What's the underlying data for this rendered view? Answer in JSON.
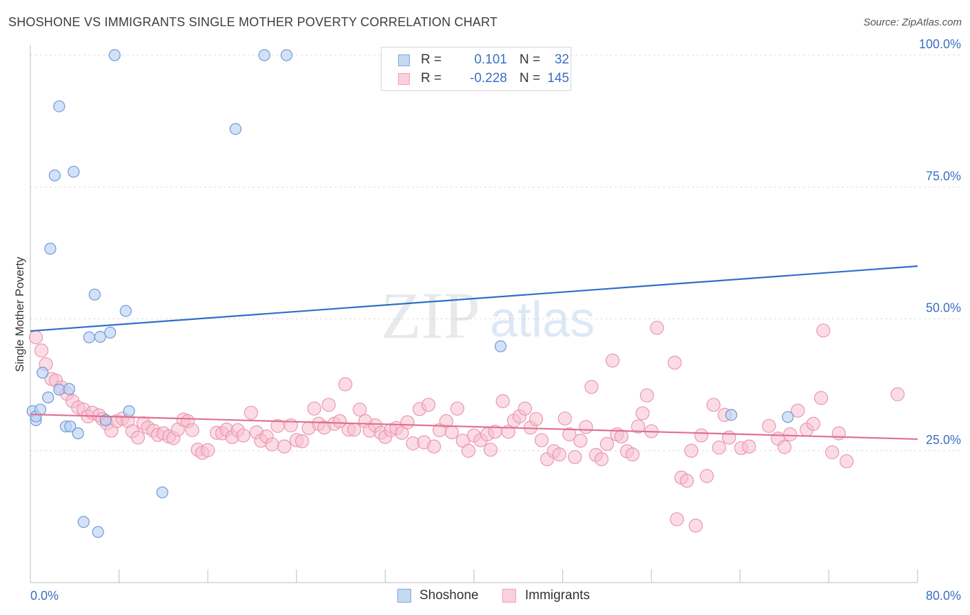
{
  "header": {
    "title": "SHOSHONE VS IMMIGRANTS SINGLE MOTHER POVERTY CORRELATION CHART",
    "source": "Source: ZipAtlas.com"
  },
  "watermark": {
    "zip": "ZIP",
    "atlas": "atlas"
  },
  "legend": {
    "rows": [
      {
        "r_label": "R =",
        "r_value": "0.101",
        "n_label": "N =",
        "n_value": "32",
        "color": "#7aa6e0"
      },
      {
        "r_label": "R =",
        "r_value": "-0.228",
        "n_label": "N =",
        "n_value": "145",
        "color": "#f0a0b8"
      }
    ]
  },
  "bottom_legend": {
    "series1": "Shoshone",
    "series2": "Immigrants"
  },
  "chart_data": {
    "type": "scatter",
    "title": "SHOSHONE VS IMMIGRANTS SINGLE MOTHER POVERTY CORRELATION CHART",
    "xlabel": "",
    "ylabel": "Single Mother Poverty",
    "xlim": [
      0,
      80
    ],
    "ylim": [
      0,
      103
    ],
    "x_tick_labels": [
      "0.0%",
      "80.0%"
    ],
    "y_ticks": [
      {
        "value": 25,
        "label": "25.0%"
      },
      {
        "value": 50,
        "label": "50.0%"
      },
      {
        "value": 75,
        "label": "75.0%"
      },
      {
        "value": 100,
        "label": "100.0%"
      }
    ],
    "grid": true,
    "legend_position": "top-center",
    "series": [
      {
        "name": "Shoshone",
        "color": "#7aa6e0",
        "trend": {
          "x": [
            0,
            80
          ],
          "y": [
            47.7,
            60.0
          ],
          "color": "#2e6fc9"
        },
        "points": [
          [
            0.2,
            32.5
          ],
          [
            0.5,
            30.8
          ],
          [
            0.5,
            31.5
          ],
          [
            0.9,
            32.8
          ],
          [
            1.1,
            39.8
          ],
          [
            1.6,
            35.1
          ],
          [
            1.8,
            63.3
          ],
          [
            2.2,
            77.2
          ],
          [
            2.6,
            90.3
          ],
          [
            2.6,
            36.6
          ],
          [
            3.2,
            29.6
          ],
          [
            3.5,
            36.7
          ],
          [
            3.6,
            29.6
          ],
          [
            3.9,
            77.9
          ],
          [
            4.3,
            28.3
          ],
          [
            4.8,
            11.5
          ],
          [
            5.3,
            46.5
          ],
          [
            5.8,
            54.6
          ],
          [
            6.1,
            9.6
          ],
          [
            6.3,
            46.6
          ],
          [
            6.8,
            30.8
          ],
          [
            7.2,
            47.4
          ],
          [
            7.6,
            100.0
          ],
          [
            8.6,
            51.5
          ],
          [
            8.9,
            32.5
          ],
          [
            11.9,
            17.1
          ],
          [
            18.5,
            86.0
          ],
          [
            21.1,
            100.0
          ],
          [
            23.1,
            100.0
          ],
          [
            42.4,
            44.8
          ],
          [
            63.2,
            31.8
          ],
          [
            68.3,
            31.4
          ]
        ]
      },
      {
        "name": "Immigrants",
        "color": "#f0a0b8",
        "trend": {
          "x": [
            0,
            80
          ],
          "y": [
            31.9,
            27.2
          ],
          "color": "#e0708f"
        },
        "points": [
          [
            0.5,
            46.5
          ],
          [
            1.0,
            44.0
          ],
          [
            1.4,
            41.4
          ],
          [
            1.9,
            38.6
          ],
          [
            2.3,
            38.3
          ],
          [
            2.8,
            37.0
          ],
          [
            3.3,
            35.8
          ],
          [
            3.8,
            34.4
          ],
          [
            4.3,
            33.2
          ],
          [
            4.8,
            32.8
          ],
          [
            5.2,
            31.5
          ],
          [
            5.6,
            32.2
          ],
          [
            6.2,
            31.7
          ],
          [
            6.5,
            31.0
          ],
          [
            6.9,
            30.2
          ],
          [
            7.3,
            28.8
          ],
          [
            7.8,
            30.6
          ],
          [
            8.3,
            31.1
          ],
          [
            8.8,
            30.6
          ],
          [
            9.2,
            28.7
          ],
          [
            9.7,
            27.5
          ],
          [
            10.2,
            30.2
          ],
          [
            10.6,
            29.4
          ],
          [
            11.1,
            28.8
          ],
          [
            11.5,
            28.0
          ],
          [
            12.0,
            28.3
          ],
          [
            12.5,
            27.7
          ],
          [
            12.9,
            27.4
          ],
          [
            13.3,
            29.0
          ],
          [
            13.8,
            30.9
          ],
          [
            14.2,
            30.6
          ],
          [
            14.6,
            28.9
          ],
          [
            15.1,
            25.2
          ],
          [
            15.5,
            24.6
          ],
          [
            16.0,
            25.1
          ],
          [
            16.8,
            28.4
          ],
          [
            17.3,
            28.3
          ],
          [
            17.7,
            29.0
          ],
          [
            18.2,
            27.6
          ],
          [
            18.7,
            28.9
          ],
          [
            19.2,
            27.9
          ],
          [
            19.9,
            32.2
          ],
          [
            20.4,
            28.5
          ],
          [
            20.8,
            26.9
          ],
          [
            21.3,
            27.7
          ],
          [
            21.8,
            26.2
          ],
          [
            22.3,
            29.7
          ],
          [
            22.9,
            25.8
          ],
          [
            23.5,
            29.8
          ],
          [
            24.0,
            27.0
          ],
          [
            24.5,
            26.8
          ],
          [
            25.1,
            29.3
          ],
          [
            25.6,
            33.0
          ],
          [
            26.0,
            30.1
          ],
          [
            26.5,
            29.4
          ],
          [
            26.9,
            33.7
          ],
          [
            27.4,
            30.1
          ],
          [
            27.9,
            30.6
          ],
          [
            28.4,
            37.6
          ],
          [
            28.7,
            29.0
          ],
          [
            29.2,
            29.0
          ],
          [
            29.7,
            32.8
          ],
          [
            30.2,
            30.6
          ],
          [
            30.6,
            28.8
          ],
          [
            31.1,
            29.8
          ],
          [
            31.6,
            28.4
          ],
          [
            32.0,
            27.6
          ],
          [
            32.5,
            28.9
          ],
          [
            33.0,
            29.3
          ],
          [
            33.5,
            28.4
          ],
          [
            34.0,
            30.4
          ],
          [
            34.5,
            26.4
          ],
          [
            35.1,
            32.9
          ],
          [
            35.5,
            26.6
          ],
          [
            35.9,
            33.7
          ],
          [
            36.4,
            25.8
          ],
          [
            36.9,
            28.9
          ],
          [
            37.5,
            30.6
          ],
          [
            38.0,
            28.5
          ],
          [
            38.5,
            33.0
          ],
          [
            39.0,
            26.9
          ],
          [
            39.5,
            25.0
          ],
          [
            40.0,
            27.9
          ],
          [
            40.6,
            27.0
          ],
          [
            41.2,
            28.1
          ],
          [
            41.5,
            25.2
          ],
          [
            41.9,
            28.6
          ],
          [
            42.6,
            34.4
          ],
          [
            43.1,
            28.6
          ],
          [
            43.6,
            30.7
          ],
          [
            44.1,
            31.5
          ],
          [
            44.6,
            33.0
          ],
          [
            45.1,
            29.4
          ],
          [
            45.6,
            31.0
          ],
          [
            46.1,
            27.0
          ],
          [
            46.6,
            23.4
          ],
          [
            47.2,
            24.9
          ],
          [
            47.7,
            24.3
          ],
          [
            48.2,
            31.1
          ],
          [
            48.6,
            28.1
          ],
          [
            49.1,
            23.8
          ],
          [
            49.6,
            26.9
          ],
          [
            50.1,
            29.5
          ],
          [
            50.6,
            37.1
          ],
          [
            51.0,
            24.2
          ],
          [
            51.5,
            23.4
          ],
          [
            52.0,
            26.3
          ],
          [
            52.5,
            42.1
          ],
          [
            52.9,
            28.1
          ],
          [
            53.3,
            27.7
          ],
          [
            53.8,
            24.9
          ],
          [
            54.3,
            24.3
          ],
          [
            54.8,
            29.6
          ],
          [
            55.2,
            32.1
          ],
          [
            55.6,
            35.5
          ],
          [
            56.0,
            28.7
          ],
          [
            56.5,
            48.3
          ],
          [
            58.1,
            41.7
          ],
          [
            58.3,
            12.0
          ],
          [
            58.7,
            19.9
          ],
          [
            59.2,
            19.3
          ],
          [
            59.6,
            25.0
          ],
          [
            60.0,
            10.8
          ],
          [
            60.5,
            27.9
          ],
          [
            61.0,
            20.2
          ],
          [
            61.6,
            33.7
          ],
          [
            62.1,
            25.6
          ],
          [
            62.6,
            31.8
          ],
          [
            63.0,
            27.5
          ],
          [
            64.1,
            25.5
          ],
          [
            64.8,
            25.8
          ],
          [
            66.6,
            29.7
          ],
          [
            67.4,
            27.3
          ],
          [
            68.0,
            25.7
          ],
          [
            68.5,
            28.1
          ],
          [
            69.2,
            32.6
          ],
          [
            70.0,
            29.0
          ],
          [
            70.6,
            30.1
          ],
          [
            71.3,
            35.0
          ],
          [
            71.5,
            47.8
          ],
          [
            72.3,
            24.7
          ],
          [
            72.9,
            28.3
          ],
          [
            73.6,
            23.0
          ],
          [
            78.2,
            35.7
          ]
        ]
      }
    ]
  }
}
